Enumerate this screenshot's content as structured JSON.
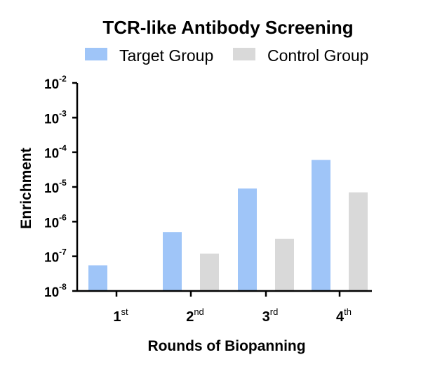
{
  "chart_data": {
    "type": "bar",
    "title": "TCR-like Antibody Screening",
    "xlabel": "Rounds of Biopanning",
    "ylabel": "Enrichment",
    "yscale": "log",
    "ylim": [
      1e-08,
      0.01
    ],
    "y_ticks": [
      {
        "base": "10",
        "exp": "-2",
        "value": 0.01
      },
      {
        "base": "10",
        "exp": "-3",
        "value": 0.001
      },
      {
        "base": "10",
        "exp": "-4",
        "value": 0.0001
      },
      {
        "base": "10",
        "exp": "-5",
        "value": 1e-05
      },
      {
        "base": "10",
        "exp": "-6",
        "value": 1e-06
      },
      {
        "base": "10",
        "exp": "-7",
        "value": 1e-07
      },
      {
        "base": "10",
        "exp": "-8",
        "value": 1e-08
      }
    ],
    "categories": [
      {
        "main": "1",
        "sup": "st"
      },
      {
        "main": "2",
        "sup": "nd"
      },
      {
        "main": "3",
        "sup": "rd"
      },
      {
        "main": "4",
        "sup": "th"
      }
    ],
    "series": [
      {
        "name": "Target Group",
        "color": "#9fc5f8",
        "values": [
          5.5e-08,
          5e-07,
          9e-06,
          6e-05
        ]
      },
      {
        "name": "Control Group",
        "color": "#d9d9d9",
        "values": [
          null,
          1.2e-07,
          3.2e-07,
          7e-06
        ]
      }
    ],
    "legend_position": "top",
    "grid": false
  }
}
